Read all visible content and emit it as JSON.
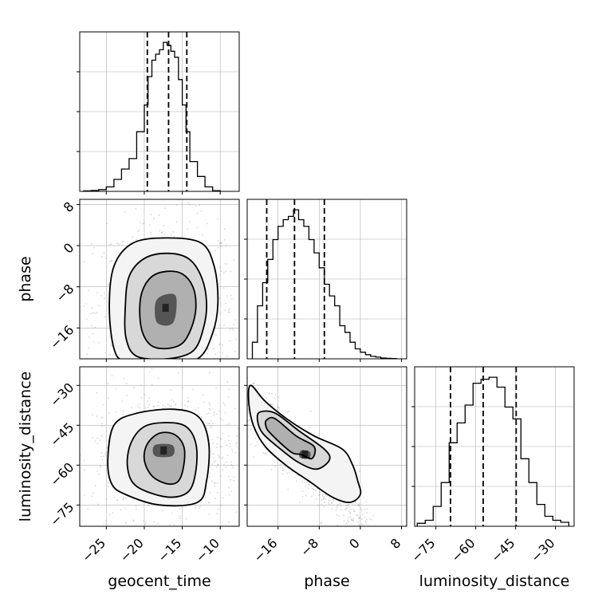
{
  "chart_data": {
    "type": "corner",
    "parameters": [
      {
        "name": "geocent_time",
        "label": "geocent_time",
        "range": [
          -28.5,
          -7.5
        ],
        "ticks": [
          -25,
          -20,
          -15,
          -10
        ],
        "tick_labels": [
          "−25",
          "−20",
          "−15",
          "−10"
        ],
        "quantiles": [
          -19.6,
          -16.8,
          -14.4
        ],
        "hist": {
          "bin_edges": [
            -28,
            -27,
            -26,
            -25,
            -24,
            -23,
            -22,
            -21,
            -20,
            -19.5,
            -19,
            -18.5,
            -18,
            -17.5,
            -17,
            -16.5,
            -16,
            -15.5,
            -15,
            -14.5,
            -14,
            -13,
            -12,
            -11,
            -10
          ],
          "counts": [
            0.3,
            0.6,
            1.2,
            3,
            8,
            15,
            22,
            40,
            58,
            77,
            88,
            92,
            95,
            100,
            98,
            94,
            90,
            75,
            58,
            40,
            20,
            10,
            3,
            0.5
          ]
        }
      },
      {
        "name": "phase",
        "label": "phase",
        "range": [
          -22,
          9
        ],
        "ticks": [
          -16,
          -8,
          0,
          8
        ],
        "tick_labels": [
          "−16",
          "−8",
          "0",
          "8"
        ],
        "quantiles": [
          -18.2,
          -12.8,
          -7
        ],
        "hist": {
          "bin_edges": [
            -21,
            -20,
            -19,
            -18,
            -17,
            -16,
            -15,
            -14,
            -13,
            -12,
            -11,
            -10,
            -9,
            -8,
            -7,
            -6,
            -5,
            -4,
            -3,
            -2,
            -1,
            0,
            1,
            2,
            3,
            4,
            5,
            6,
            7
          ],
          "counts": [
            10,
            32,
            46,
            60,
            72,
            80,
            84,
            86,
            90,
            84,
            80,
            72,
            64,
            55,
            45,
            38,
            32,
            20,
            16,
            10,
            6,
            4,
            2.5,
            1.5,
            1,
            0.5,
            0.3,
            0.2
          ]
        }
      },
      {
        "name": "luminosity_distance",
        "label": "luminosity_distance",
        "range": [
          -83,
          -23
        ],
        "ticks": [
          -75,
          -60,
          -45,
          -30
        ],
        "tick_labels": [
          "−75",
          "−60",
          "−45",
          "−30"
        ],
        "quantiles": [
          -69.5,
          -57.2,
          -44.8
        ],
        "hist": {
          "bin_edges": [
            -82,
            -79,
            -76,
            -73,
            -70,
            -67,
            -64,
            -61,
            -58,
            -55,
            -52,
            -49,
            -46,
            -43,
            -40,
            -37,
            -34,
            -31,
            -28,
            -25
          ],
          "counts": [
            1.5,
            3,
            10,
            22,
            42,
            52,
            61,
            72,
            74,
            75,
            70,
            60,
            54,
            34,
            22,
            11,
            5,
            3,
            2
          ]
        }
      }
    ],
    "pairs": [
      {
        "x": "geocent_time",
        "y": "phase",
        "center": [
          -17,
          -12.5
        ],
        "contours": [
          [
            [
              -19,
              -19.5
            ],
            [
              -17,
              -20
            ],
            [
              -15,
              -19
            ],
            [
              -13.8,
              -16
            ],
            [
              -13.2,
              -12
            ],
            [
              -13.6,
              -8
            ],
            [
              -15,
              -5.5
            ],
            [
              -17,
              -5
            ],
            [
              -19,
              -6
            ],
            [
              -20.3,
              -9
            ],
            [
              -20.6,
              -13
            ],
            [
              -20.2,
              -17
            ]
          ],
          [
            [
              -21,
              -21.5
            ],
            [
              -17,
              -22
            ],
            [
              -13.6,
              -20.5
            ],
            [
              -12.2,
              -16
            ],
            [
              -11.8,
              -11
            ],
            [
              -12.5,
              -6
            ],
            [
              -14.2,
              -2.5
            ],
            [
              -17,
              -1.5
            ],
            [
              -20,
              -2.5
            ],
            [
              -22,
              -6
            ],
            [
              -22.5,
              -12
            ],
            [
              -22.4,
              -18
            ]
          ],
          [
            [
              -22.5,
              -22.5
            ],
            [
              -18,
              -23
            ],
            [
              -13,
              -22
            ],
            [
              -11,
              -17
            ],
            [
              -10.3,
              -11
            ],
            [
              -10.8,
              -4
            ],
            [
              -12.5,
              0.5
            ],
            [
              -17,
              1.5
            ],
            [
              -21.5,
              0.5
            ],
            [
              -24,
              -4
            ],
            [
              -24.6,
              -12
            ],
            [
              -24,
              -20
            ]
          ]
        ],
        "core": [
          [
            -18.3,
            -15
          ],
          [
            -16.2,
            -15
          ],
          [
            -15.8,
            -10
          ],
          [
            -17.2,
            -9.5
          ],
          [
            -18.5,
            -11
          ]
        ]
      },
      {
        "x": "geocent_time",
        "y": "luminosity_distance",
        "center": [
          -17,
          -56
        ],
        "contours": [
          [
            [
              -19,
              -64
            ],
            [
              -17,
              -67
            ],
            [
              -15.5,
              -66
            ],
            [
              -14.8,
              -60
            ],
            [
              -14.8,
              -53
            ],
            [
              -16,
              -48.5
            ],
            [
              -18,
              -48
            ],
            [
              -19.6,
              -52
            ],
            [
              -20,
              -58
            ]
          ],
          [
            [
              -21,
              -68
            ],
            [
              -17,
              -72
            ],
            [
              -14.2,
              -70
            ],
            [
              -13.2,
              -62
            ],
            [
              -13.2,
              -52
            ],
            [
              -14.5,
              -45.5
            ],
            [
              -17,
              -44
            ],
            [
              -20,
              -45.5
            ],
            [
              -21.8,
              -52
            ],
            [
              -22.2,
              -61
            ]
          ],
          [
            [
              -22.5,
              -71
            ],
            [
              -18,
              -75
            ],
            [
              -13,
              -74
            ],
            [
              -11.8,
              -66
            ],
            [
              -11.5,
              -52
            ],
            [
              -12.8,
              -42
            ],
            [
              -16,
              -39
            ],
            [
              -21,
              -40.5
            ],
            [
              -24,
              -45
            ],
            [
              -24.8,
              -58
            ],
            [
              -24.3,
              -67
            ]
          ]
        ],
        "core": [
          [
            -18.6,
            -56.5
          ],
          [
            -16.3,
            -56.5
          ],
          [
            -16.3,
            -52.5
          ],
          [
            -18.6,
            -52.5
          ]
        ]
      },
      {
        "x": "phase",
        "y": "luminosity_distance",
        "center": [
          -12.5,
          -55
        ],
        "contours": [
          [
            [
              -18.2,
              -43
            ],
            [
              -16.6,
              -42.5
            ],
            [
              -12.5,
              -49
            ],
            [
              -9,
              -53
            ],
            [
              -9.4,
              -57.5
            ],
            [
              -11.5,
              -56
            ],
            [
              -13.5,
              -55
            ],
            [
              -17.5,
              -48
            ],
            [
              -18.4,
              -45
            ]
          ],
          [
            [
              -19.5,
              -40
            ],
            [
              -16.5,
              -40.5
            ],
            [
              -12,
              -47
            ],
            [
              -7,
              -54
            ],
            [
              -6,
              -58
            ],
            [
              -8.5,
              -61.5
            ],
            [
              -12,
              -59
            ],
            [
              -15.5,
              -54
            ],
            [
              -19,
              -48
            ],
            [
              -20,
              -43
            ]
          ],
          [
            [
              -21.3,
              -30
            ],
            [
              -18.5,
              -36
            ],
            [
              -14,
              -43
            ],
            [
              -9,
              -49
            ],
            [
              -3.5,
              -54
            ],
            [
              -1.5,
              -60
            ],
            [
              -0.5,
              -66
            ],
            [
              0,
              -71
            ],
            [
              -2,
              -74
            ],
            [
              -5.5,
              -72
            ],
            [
              -10,
              -66
            ],
            [
              -14.5,
              -60
            ],
            [
              -18.5,
              -53
            ],
            [
              -20.8,
              -45
            ],
            [
              -21.7,
              -36
            ]
          ]
        ],
        "core": [
          [
            -11.5,
            -54.5
          ],
          [
            -9.8,
            -55
          ],
          [
            -10,
            -57.5
          ],
          [
            -11.8,
            -57
          ]
        ]
      }
    ],
    "colors": {
      "line": "#000000",
      "grid": "#b0b0b0",
      "quantile": "#000000",
      "shade_dark": "#222222",
      "shade_light": "#eeeeee",
      "scatter": "#8a8a8a"
    }
  }
}
